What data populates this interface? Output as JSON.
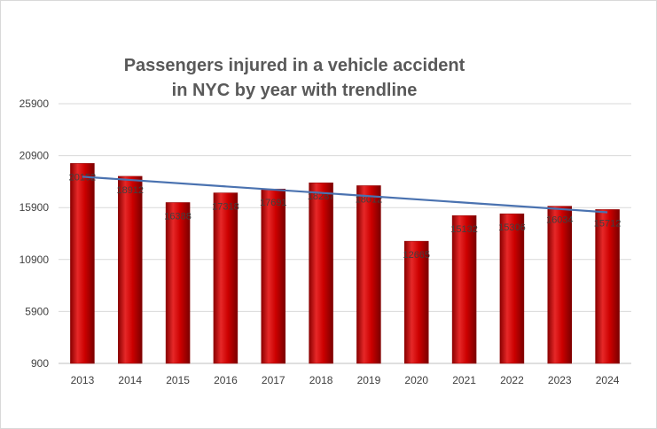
{
  "chart_data": {
    "type": "bar",
    "title_line1": "Passengers injured in a vehicle accident",
    "title_line2": "in NYC by year with trendline",
    "categories": [
      "2013",
      "2014",
      "2015",
      "2016",
      "2017",
      "2018",
      "2019",
      "2020",
      "2021",
      "2022",
      "2023",
      "2024"
    ],
    "values": [
      20152,
      18912,
      16388,
      17318,
      17691,
      18287,
      18012,
      12665,
      15132,
      15306,
      16034,
      15712
    ],
    "data_labels": [
      "20152",
      "18912",
      "16388",
      "17318",
      "17691",
      "18287",
      "18012",
      "12665",
      "15132",
      "15306",
      "16034",
      "15712"
    ],
    "yticks": [
      "900",
      "5900",
      "10900",
      "15900",
      "20900",
      "25900"
    ],
    "ylim": [
      900,
      25900
    ],
    "xlabel": "",
    "ylabel": "",
    "grid": true,
    "legend": "none",
    "trendline": {
      "type": "linear",
      "start": 18870,
      "end": 15450,
      "color": "#4a72b0"
    },
    "colors": {
      "bar": "#cc0000",
      "bar_dark": "#8b0000",
      "bar_light": "#e62828",
      "grid": "#d9d9d9",
      "axis": "#bfbfbf"
    }
  }
}
